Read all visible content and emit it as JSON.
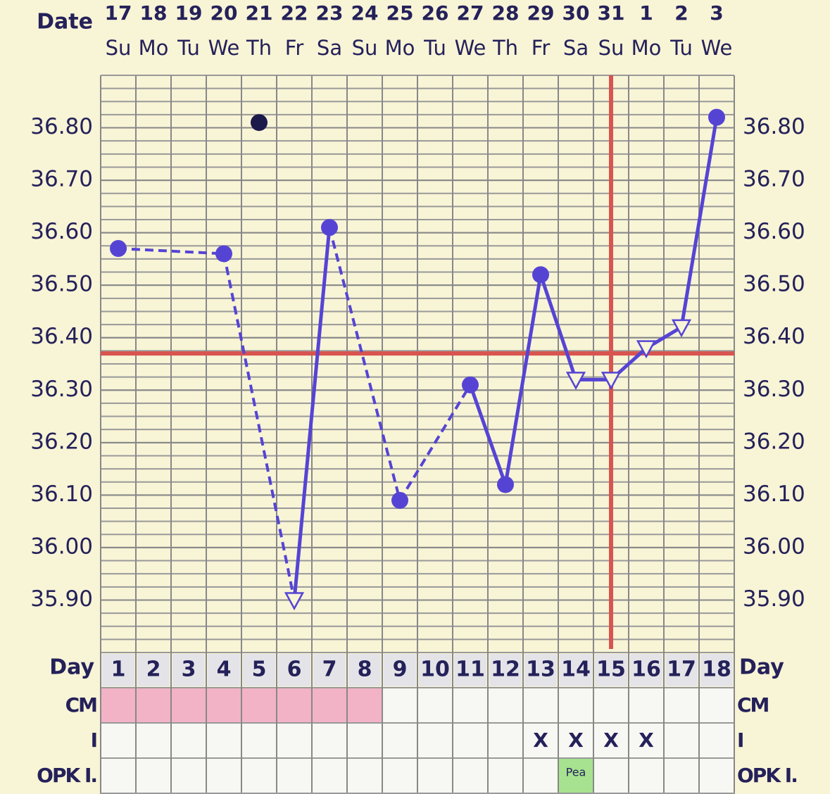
{
  "chart_data": {
    "type": "line",
    "x_label": "Date",
    "dates": [
      "17",
      "18",
      "19",
      "20",
      "21",
      "22",
      "23",
      "24",
      "25",
      "26",
      "27",
      "28",
      "29",
      "30",
      "31",
      "1",
      "2",
      "3"
    ],
    "weekdays": [
      "Su",
      "Mo",
      "Tu",
      "We",
      "Th",
      "Fr",
      "Sa",
      "Su",
      "Mo",
      "Tu",
      "We",
      "Th",
      "Fr",
      "Sa",
      "Su",
      "Mo",
      "Tu",
      "We"
    ],
    "day_label": "Day",
    "days": [
      1,
      2,
      3,
      4,
      5,
      6,
      7,
      8,
      9,
      10,
      11,
      12,
      13,
      14,
      15,
      16,
      17,
      18
    ],
    "ylim": [
      35.8,
      36.9
    ],
    "yticks": [
      {
        "value": 35.9,
        "label": "35.90"
      },
      {
        "value": 36.0,
        "label": "36.00"
      },
      {
        "value": 36.1,
        "label": "36.10"
      },
      {
        "value": 36.2,
        "label": "36.20"
      },
      {
        "value": 36.3,
        "label": "36.30"
      },
      {
        "value": 36.4,
        "label": "36.40"
      },
      {
        "value": 36.5,
        "label": "36.50"
      },
      {
        "value": 36.6,
        "label": "36.60"
      },
      {
        "value": 36.7,
        "label": "36.70"
      },
      {
        "value": 36.8,
        "label": "36.80"
      }
    ],
    "grid": true,
    "series": [
      {
        "color": "#5544d4",
        "values": [
          36.57,
          null,
          null,
          36.56,
          null,
          35.9,
          36.61,
          null,
          36.09,
          null,
          36.31,
          36.12,
          36.52,
          36.32,
          36.32,
          36.38,
          36.42,
          36.82
        ],
        "markers": [
          "circle",
          null,
          null,
          "circle",
          null,
          "triangle",
          "circle",
          null,
          "circle",
          null,
          "circle",
          "circle",
          "circle",
          "triangle",
          "triangle",
          "triangle",
          "triangle",
          "circle"
        ]
      },
      {
        "color": "#1c1a4a",
        "values": [
          null,
          null,
          null,
          null,
          36.81,
          null,
          null,
          null,
          null,
          null,
          null,
          null,
          null,
          null,
          null,
          null,
          null,
          null
        ],
        "markers": [
          null,
          null,
          null,
          null,
          "circle",
          null,
          null,
          null,
          null,
          null,
          null,
          null,
          null,
          null,
          null,
          null,
          null,
          null
        ]
      }
    ],
    "coverline": 36.37,
    "ovulation_day": 15,
    "reference_color": "#d9534f",
    "rows": [
      {
        "label": "CM",
        "fills": [
          "#f2b3c6",
          "#f2b3c6",
          "#f2b3c6",
          "#f2b3c6",
          "#f2b3c6",
          "#f2b3c6",
          "#f2b3c6",
          "#f2b3c6",
          null,
          null,
          null,
          null,
          null,
          null,
          null,
          null,
          null,
          null
        ],
        "cells": [
          null,
          null,
          null,
          null,
          null,
          null,
          null,
          null,
          null,
          null,
          null,
          null,
          null,
          null,
          null,
          null,
          null,
          null
        ]
      },
      {
        "label": "I",
        "fills": [
          null,
          null,
          null,
          null,
          null,
          null,
          null,
          null,
          null,
          null,
          null,
          null,
          null,
          null,
          null,
          null,
          null,
          null
        ],
        "cells": [
          null,
          null,
          null,
          null,
          null,
          null,
          null,
          null,
          null,
          null,
          null,
          null,
          "X",
          "X",
          "X",
          "X",
          null,
          null
        ]
      },
      {
        "label": "OPK I.",
        "fills": [
          null,
          null,
          null,
          null,
          null,
          null,
          null,
          null,
          null,
          null,
          null,
          null,
          null,
          "#a6e28f",
          null,
          null,
          null,
          null
        ],
        "cells": [
          null,
          null,
          null,
          null,
          null,
          null,
          null,
          null,
          null,
          null,
          null,
          null,
          null,
          "Pea",
          null,
          null,
          null,
          null
        ]
      }
    ]
  }
}
